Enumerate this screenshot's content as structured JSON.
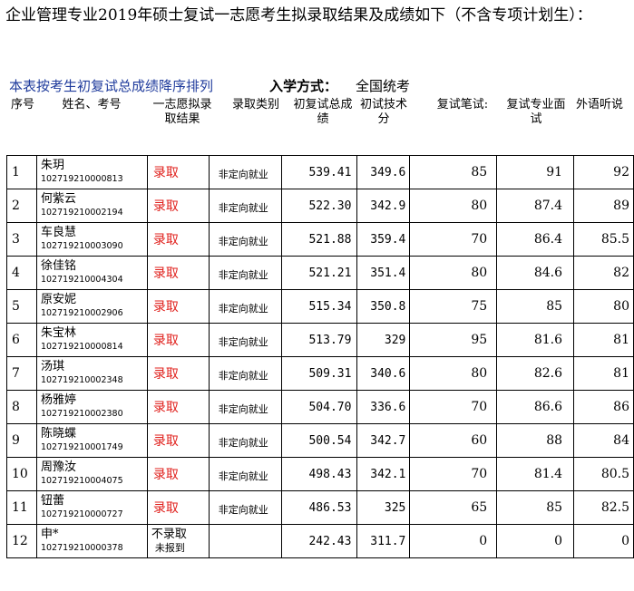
{
  "title": "企业管理专业2019年硕士复试一志愿考生拟录取结果及成绩如下（不含专项计划生）：",
  "sort_note": "本表按考生初复试总成绩降序排列",
  "admission_label": "入学方式：",
  "admission_value": "全国统考",
  "headers": {
    "seq": "序号",
    "name": "姓名、考号",
    "result": "一志愿拟录取结果",
    "type": "录取类别",
    "total": "初复试总成绩",
    "first": "初试技术分",
    "written": "复试笔试:",
    "pro": "复试专业面试",
    "lang": "外语听说"
  },
  "rows": [
    {
      "seq": "1",
      "name": "朱玥",
      "id": "102719210000813",
      "result": "录取",
      "result_sub": "",
      "type": "非定向就业",
      "total": "539.41",
      "first": "349.6",
      "written": "85",
      "pro": "91",
      "lang": "92"
    },
    {
      "seq": "2",
      "name": "何紫云",
      "id": "102719210002194",
      "result": "录取",
      "result_sub": "",
      "type": "非定向就业",
      "total": "522.30",
      "first": "342.9",
      "written": "80",
      "pro": "87.4",
      "lang": "89"
    },
    {
      "seq": "3",
      "name": "车良慧",
      "id": "102719210003090",
      "result": "录取",
      "result_sub": "",
      "type": "非定向就业",
      "total": "521.88",
      "first": "359.4",
      "written": "70",
      "pro": "86.4",
      "lang": "85.5"
    },
    {
      "seq": "4",
      "name": "徐佳铭",
      "id": "102719210004304",
      "result": "录取",
      "result_sub": "",
      "type": "非定向就业",
      "total": "521.21",
      "first": "351.4",
      "written": "80",
      "pro": "84.6",
      "lang": "82"
    },
    {
      "seq": "5",
      "name": "原安妮",
      "id": "102719210002906",
      "result": "录取",
      "result_sub": "",
      "type": "非定向就业",
      "total": "515.34",
      "first": "350.8",
      "written": "75",
      "pro": "85",
      "lang": "80"
    },
    {
      "seq": "6",
      "name": "朱宝林",
      "id": "102719210000814",
      "result": "录取",
      "result_sub": "",
      "type": "非定向就业",
      "total": "513.79",
      "first": "329",
      "written": "95",
      "pro": "81.6",
      "lang": "81"
    },
    {
      "seq": "7",
      "name": "汤琪",
      "id": "102719210002348",
      "result": "录取",
      "result_sub": "",
      "type": "非定向就业",
      "total": "509.31",
      "first": "340.6",
      "written": "80",
      "pro": "82.6",
      "lang": "81"
    },
    {
      "seq": "8",
      "name": "杨雅婷",
      "id": "102719210002380",
      "result": "录取",
      "result_sub": "",
      "type": "非定向就业",
      "total": "504.70",
      "first": "336.6",
      "written": "70",
      "pro": "86.6",
      "lang": "86"
    },
    {
      "seq": "9",
      "name": "陈晓蝶",
      "id": "102719210001749",
      "result": "录取",
      "result_sub": "",
      "type": "非定向就业",
      "total": "500.54",
      "first": "342.7",
      "written": "60",
      "pro": "88",
      "lang": "84"
    },
    {
      "seq": "10",
      "name": "周豫汝",
      "id": "102719210004075",
      "result": "录取",
      "result_sub": "",
      "type": "非定向就业",
      "total": "498.43",
      "first": "342.1",
      "written": "70",
      "pro": "81.4",
      "lang": "80.5"
    },
    {
      "seq": "11",
      "name": "钮蕾",
      "id": "102719210000727",
      "result": "录取",
      "result_sub": "",
      "type": "非定向就业",
      "total": "486.53",
      "first": "325",
      "written": "65",
      "pro": "85",
      "lang": "82.5"
    },
    {
      "seq": "12",
      "name": "申*",
      "id": "102719210000378",
      "result": "不录取",
      "result_sub": "未报到",
      "type": "",
      "total": "242.43",
      "first": "311.7",
      "written": "0",
      "pro": "0",
      "lang": "0"
    }
  ],
  "colors": {
    "admit": "#e0201c",
    "sort_note": "#1f3b9c"
  }
}
